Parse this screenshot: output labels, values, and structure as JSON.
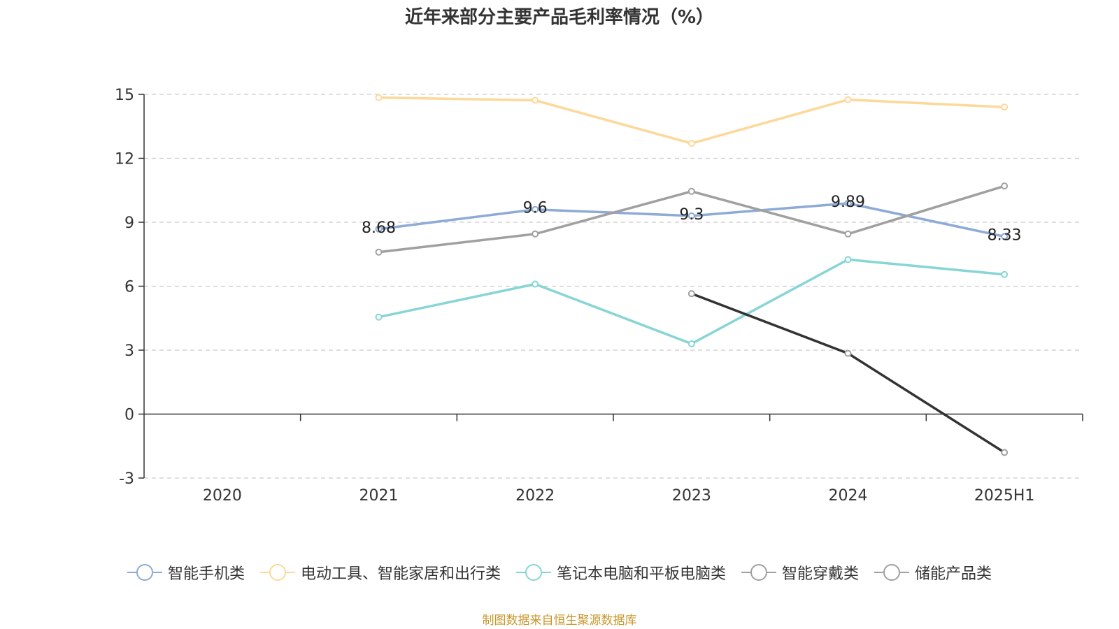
{
  "chart_data": {
    "type": "line",
    "title": "近年来部分主要产品毛利率情况（%）",
    "xlabel": "",
    "ylabel": "",
    "categories": [
      "2020",
      "2021",
      "2022",
      "2023",
      "2024",
      "2025H1"
    ],
    "ylim": [
      -3,
      15
    ],
    "yticks": [
      -3,
      0,
      3,
      6,
      9,
      12,
      15
    ],
    "grid": true,
    "legend_position": "bottom",
    "series": [
      {
        "name": "智能手机类",
        "color": "#8eaad6",
        "values": [
          null,
          8.68,
          9.6,
          9.3,
          9.89,
          8.33
        ],
        "labels": [
          "",
          "8.68",
          "9.6",
          "9.3",
          "9.89",
          "8.33"
        ]
      },
      {
        "name": "电动工具、智能家居和出行类",
        "color": "#fdd89a",
        "values": [
          null,
          14.85,
          14.72,
          12.7,
          14.75,
          14.4
        ]
      },
      {
        "name": "笔记本电脑和平板电脑类",
        "color": "#88d5d6",
        "values": [
          null,
          4.55,
          6.1,
          3.3,
          7.25,
          6.55
        ]
      },
      {
        "name": "智能穿戴类",
        "color": "#a0a0a0",
        "values": [
          null,
          7.6,
          8.45,
          10.45,
          8.45,
          10.7
        ]
      },
      {
        "name": "储能产品类",
        "color": "#333333",
        "marker_color": "#a0a0a0",
        "values": [
          null,
          null,
          null,
          5.65,
          2.85,
          -1.8
        ]
      }
    ]
  },
  "source_note": "制图数据来自恒生聚源数据库"
}
